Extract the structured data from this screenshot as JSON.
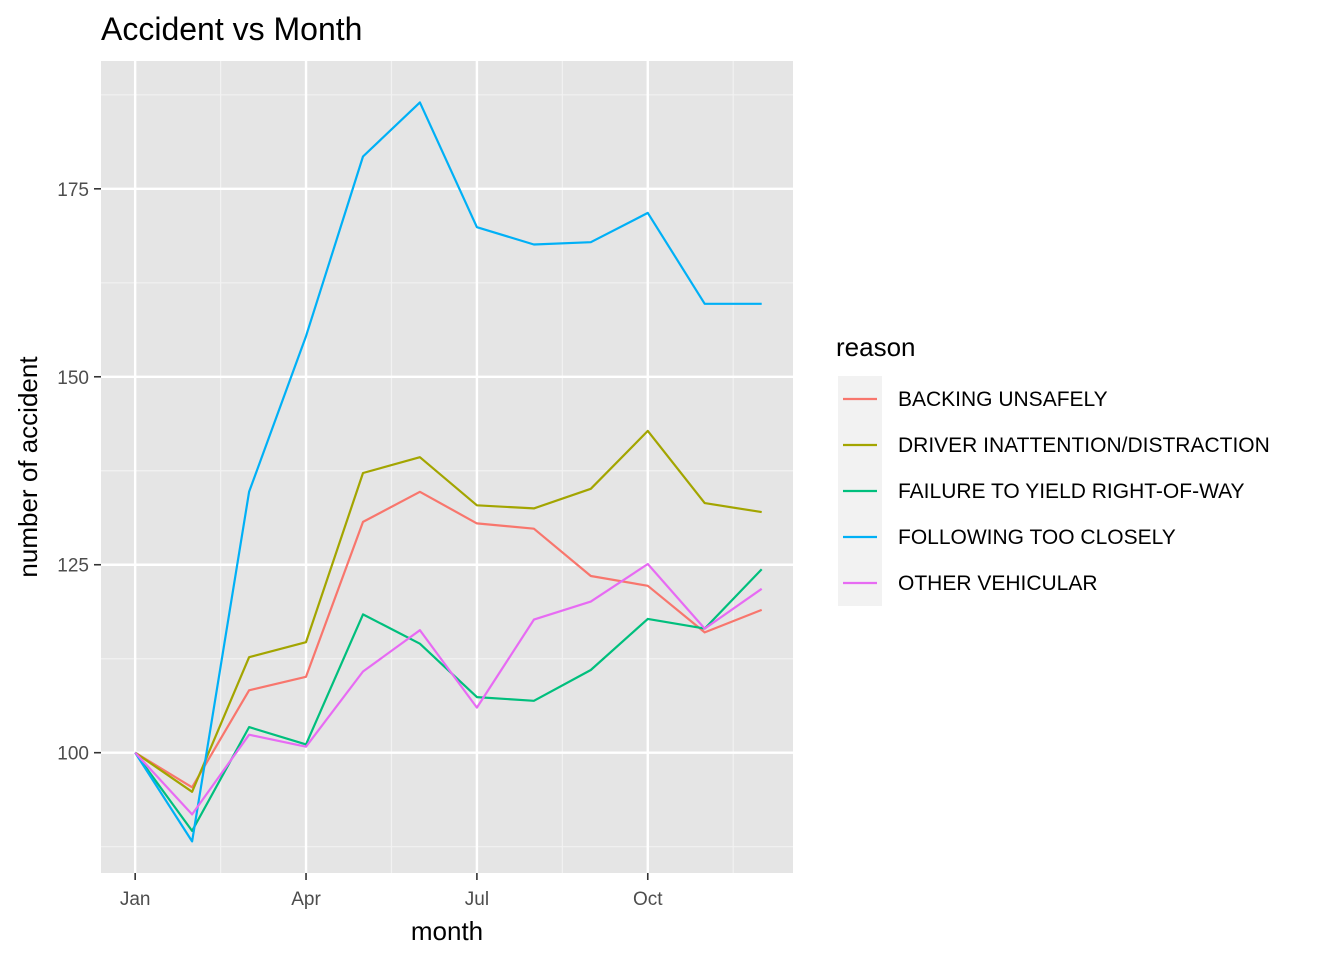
{
  "chart_data": {
    "type": "line",
    "title": "Accident vs Month",
    "xlabel": "month",
    "ylabel": "number of accident",
    "x": [
      "Jan",
      "Feb",
      "Mar",
      "Apr",
      "May",
      "Jun",
      "Jul",
      "Aug",
      "Sep",
      "Oct",
      "Nov",
      "Dec"
    ],
    "x_tick_labels": [
      {
        "month": 1,
        "label": "Jan"
      },
      {
        "month": 4,
        "label": "Apr"
      },
      {
        "month": 7,
        "label": "Jul"
      },
      {
        "month": 10,
        "label": "Oct"
      }
    ],
    "y_ticks": [
      100,
      125,
      150,
      175
    ],
    "ylim": [
      84,
      192
    ],
    "xlim": [
      0.4,
      12.55
    ],
    "grid": true,
    "legend_title": "reason",
    "legend_position": "right",
    "panel_background": "#e5e5e5",
    "series": [
      {
        "name": "BACKING UNSAFELY",
        "color": "#F8766D",
        "values": [
          100,
          95.4,
          108.3,
          110.1,
          130.7,
          134.7,
          130.5,
          129.8,
          123.5,
          122.2,
          116.0,
          119.0
        ]
      },
      {
        "name": "DRIVER INATTENTION/DISTRACTION",
        "color": "#A3A500",
        "values": [
          100,
          94.8,
          112.7,
          114.7,
          137.2,
          139.3,
          132.9,
          132.5,
          135.1,
          142.8,
          133.2,
          132.0
        ]
      },
      {
        "name": "FAILURE TO YIELD RIGHT-OF-WAY",
        "color": "#00BF7D",
        "values": [
          100,
          89.6,
          103.4,
          101.1,
          118.4,
          114.5,
          107.4,
          106.9,
          111.0,
          117.8,
          116.5,
          124.4
        ]
      },
      {
        "name": "FOLLOWING TOO CLOSELY",
        "color": "#00B0F6",
        "values": [
          100,
          88.2,
          134.7,
          155.4,
          179.3,
          186.5,
          169.9,
          167.6,
          167.9,
          171.8,
          159.7,
          159.7
        ]
      },
      {
        "name": "OTHER VEHICULAR",
        "color": "#E76BF3",
        "values": [
          100,
          91.8,
          102.4,
          100.8,
          110.8,
          116.3,
          106.0,
          117.7,
          120.1,
          125.1,
          116.5,
          121.8
        ]
      }
    ]
  }
}
